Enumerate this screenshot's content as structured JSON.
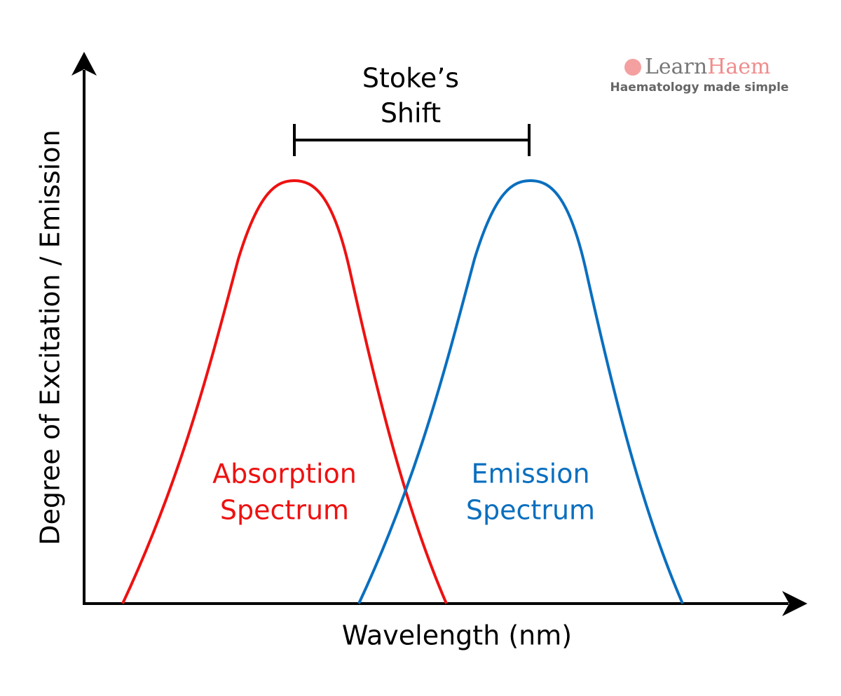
{
  "title": {
    "lines": [
      "Stoke’s",
      "Shift"
    ]
  },
  "absorption_label": {
    "lines": [
      "Absorption",
      "Spectrum"
    ]
  },
  "emission_label": {
    "lines": [
      "Emission",
      "Spectrum"
    ]
  },
  "x_axis_label": "Wavelength (nm)",
  "y_axis_label": "Degree of Excitation / Emission",
  "logo": {
    "learn": "Learn",
    "haem": "Haem",
    "tagline": "Haematology made simple"
  }
}
